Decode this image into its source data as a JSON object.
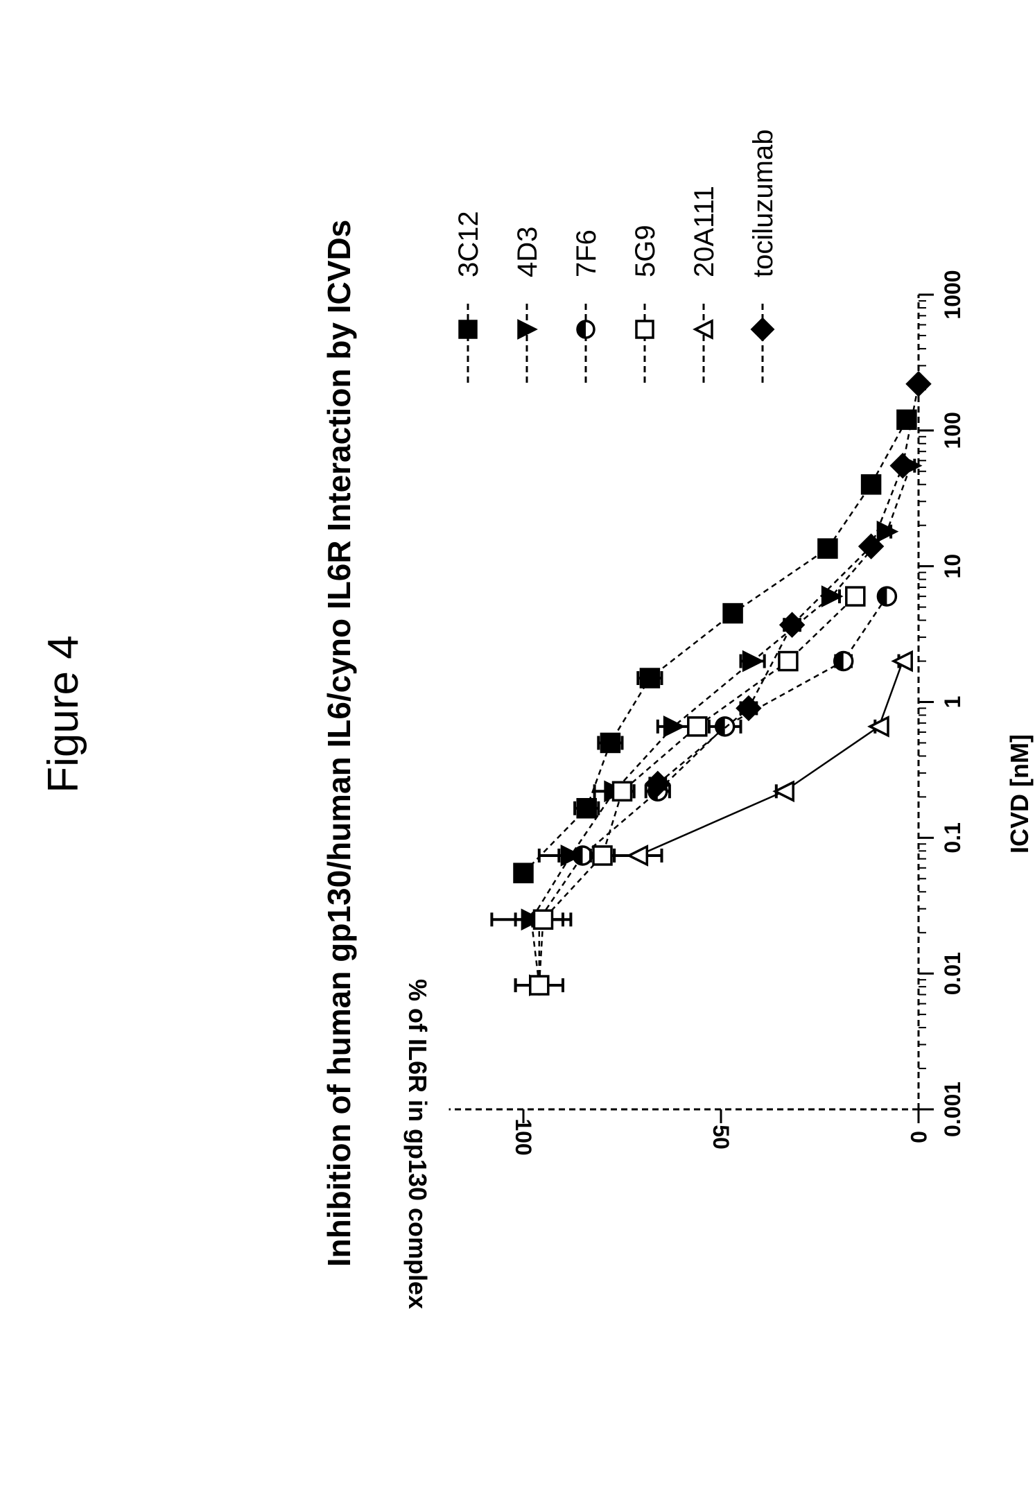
{
  "figure_label": "Figure 4",
  "chart_data": {
    "type": "scatter",
    "title": "Inhibition of human gp130/human IL6/cyno IL6R Interaction by ICVDs",
    "xlabel": "ICVD [nM]",
    "ylabel": "% of  IL6R in gp130 complex",
    "x_scale": "log",
    "xlim": [
      0.001,
      1000
    ],
    "ylim": [
      0,
      115
    ],
    "x_ticks": [
      "0.001",
      "0.01",
      "0.1",
      "1",
      "10",
      "100",
      "1000"
    ],
    "y_ticks": [
      "0",
      "50",
      "100"
    ],
    "grid": false,
    "legend_position": "right",
    "series": [
      {
        "name": "3C12",
        "marker": "square-filled",
        "x": [
          0.055,
          0.165,
          0.5,
          1.5,
          4.5,
          13.5,
          40,
          120
        ],
        "y": [
          100,
          84,
          78,
          68,
          47,
          23,
          12,
          3
        ],
        "err": [
          2,
          3,
          3,
          3,
          2,
          2,
          1,
          1
        ]
      },
      {
        "name": "4D3",
        "marker": "triangle-down-filled",
        "x": [
          0.0082,
          0.025,
          0.074,
          0.22,
          0.66,
          2,
          6,
          18,
          55
        ],
        "y": [
          96,
          98,
          88,
          77,
          62,
          42,
          22,
          8,
          2
        ],
        "err": [
          6,
          10,
          8,
          5,
          4,
          3,
          2,
          1,
          1
        ]
      },
      {
        "name": "7F6",
        "marker": "circle-half",
        "x": [
          0.0082,
          0.025,
          0.074,
          0.22,
          0.66,
          2,
          6
        ],
        "y": [
          96,
          96,
          85,
          66,
          49,
          19,
          8
        ],
        "err": [
          6,
          6,
          6,
          3,
          4,
          2,
          1
        ]
      },
      {
        "name": "5G9",
        "marker": "square-open",
        "x": [
          0.0082,
          0.025,
          0.074,
          0.22,
          0.66,
          2,
          6
        ],
        "y": [
          96,
          95,
          80,
          75,
          56,
          33,
          16
        ],
        "err": [
          2,
          2,
          3,
          3,
          2,
          2,
          1
        ]
      },
      {
        "name": "20A111",
        "marker": "triangle-up-open",
        "x": [
          0.074,
          0.22,
          0.66,
          2
        ],
        "y": [
          71,
          34,
          10,
          4
        ],
        "err": [
          6,
          2,
          1,
          1
        ]
      },
      {
        "name": "tociluzumab",
        "marker": "diamond-filled",
        "x": [
          0.25,
          0.9,
          3.7,
          14,
          55,
          220
        ],
        "y": [
          66,
          43,
          32,
          12,
          4,
          0
        ],
        "err": [
          2,
          2,
          2,
          1,
          1,
          1
        ]
      }
    ]
  }
}
